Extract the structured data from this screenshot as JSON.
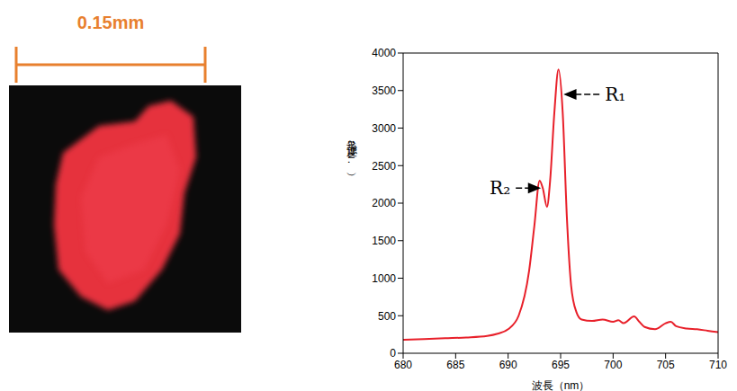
{
  "chart_data": {
    "type": "line",
    "x": [
      680,
      682,
      684,
      686,
      688,
      689,
      690,
      691,
      692,
      692.5,
      693,
      693.3,
      693.7,
      694,
      694.4,
      694.8,
      695.2,
      695.6,
      696,
      696.5,
      697,
      698,
      699,
      700,
      700.5,
      701,
      702,
      702.5,
      703,
      704,
      705,
      705.5,
      706,
      707,
      708,
      709,
      710
    ],
    "values": [
      180,
      190,
      200,
      210,
      230,
      260,
      320,
      500,
      1100,
      1700,
      2300,
      2200,
      1950,
      2300,
      3200,
      3780,
      3200,
      1800,
      900,
      550,
      450,
      430,
      450,
      420,
      440,
      400,
      490,
      420,
      350,
      320,
      400,
      420,
      360,
      330,
      320,
      300,
      280
    ],
    "color": "#e8202a",
    "xlabel": "波長（nm）",
    "ylabel": "強度（a.u.）",
    "xlim": [
      680,
      710
    ],
    "xticks": [
      680,
      685,
      690,
      695,
      700,
      705,
      710
    ],
    "ylim": [
      0,
      4000
    ],
    "yticks": [
      0,
      500,
      1000,
      1500,
      2000,
      2500,
      3000,
      3500,
      4000
    ],
    "grid": false,
    "annotations": [
      {
        "text": "R₁",
        "x": 695.1,
        "y": 3450
      },
      {
        "text": "R₂",
        "x": 693.3,
        "y": 2200
      }
    ]
  },
  "image": {
    "scale_bar_label": "0.15mm"
  }
}
